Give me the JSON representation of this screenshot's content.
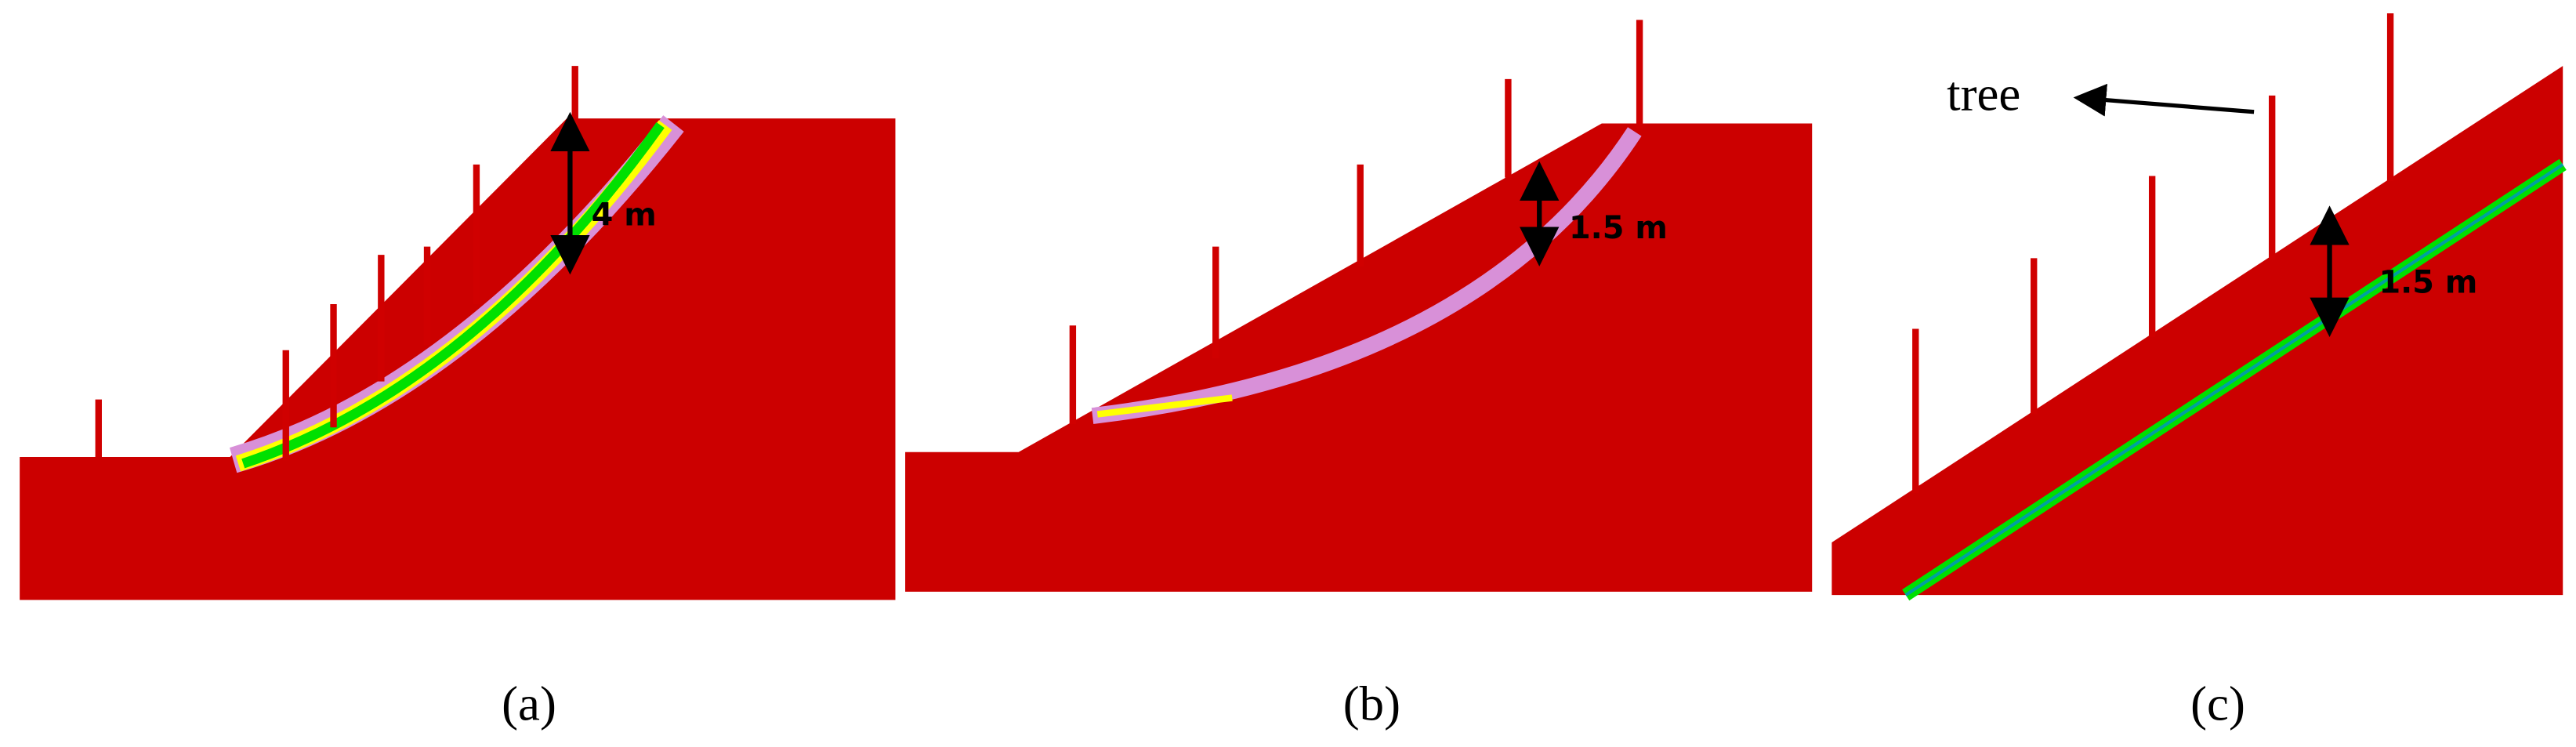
{
  "panels": [
    {
      "caption": "(a)",
      "depth_label": "4 m"
    },
    {
      "caption": "(b)",
      "depth_label": "1.5 m"
    },
    {
      "caption": "(c)",
      "depth_label": "1.5 m",
      "annotation": "tree"
    }
  ]
}
